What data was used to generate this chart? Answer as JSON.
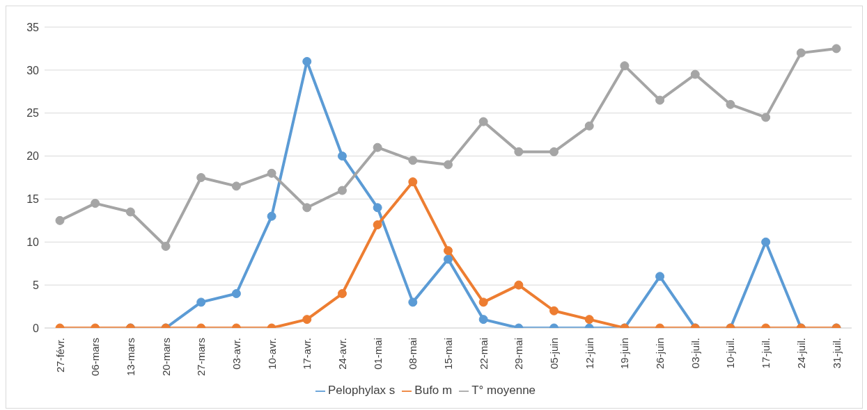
{
  "chart_data": {
    "type": "line",
    "categories": [
      "27-févr.",
      "06-mars",
      "13-mars",
      "20-mars",
      "27-mars",
      "03-avr.",
      "10-avr.",
      "17-avr.",
      "24-avr.",
      "01-mai",
      "08-mai",
      "15-mai",
      "22-mai",
      "29-mai",
      "05-juin",
      "12-juin",
      "19-juin",
      "26-juin",
      "03-juil.",
      "10-juil.",
      "17-juil.",
      "24-juil.",
      "31-juil."
    ],
    "series": [
      {
        "name": "Pelophylax s",
        "color": "#5b9bd5",
        "values": [
          null,
          null,
          0,
          0,
          3,
          4,
          13,
          31,
          20,
          14,
          3,
          8,
          1,
          0,
          0,
          0,
          0,
          6,
          0,
          0,
          10,
          0,
          0
        ]
      },
      {
        "name": "Bufo m",
        "color": "#ed7d31",
        "values": [
          0,
          0,
          0,
          0,
          0,
          0,
          0,
          1,
          4,
          12,
          17,
          9,
          3,
          5,
          2,
          1,
          0,
          0,
          0,
          0,
          0,
          0,
          0
        ]
      },
      {
        "name": "T° moyenne",
        "color": "#a5a5a5",
        "values": [
          12.5,
          14.5,
          13.5,
          9.5,
          17.5,
          16.5,
          18,
          14,
          16,
          21,
          19.5,
          19,
          24,
          20.5,
          20.5,
          23.5,
          30.5,
          26.5,
          29.5,
          26,
          24.5,
          32,
          32.5
        ]
      }
    ],
    "ylim": [
      0,
      35
    ],
    "yticks": [
      0,
      5,
      10,
      15,
      20,
      25,
      30,
      35
    ],
    "grid": "y",
    "legend": "bottom",
    "marker": "circle",
    "line_style": "solid"
  }
}
